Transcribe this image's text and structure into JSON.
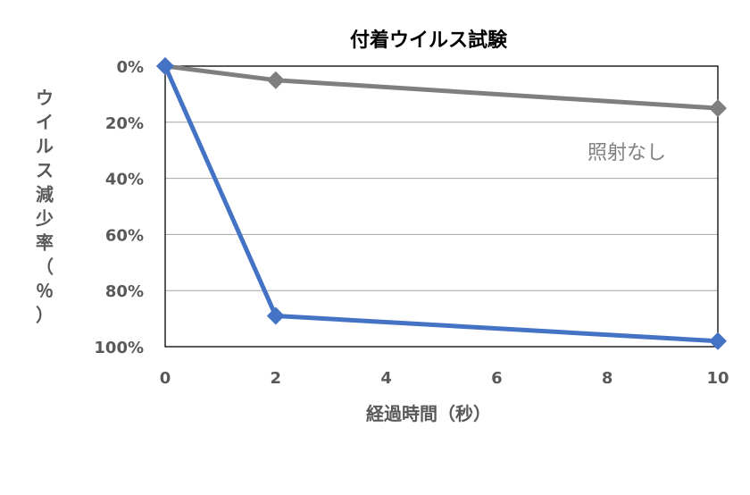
{
  "chart_data": {
    "type": "line",
    "title": "付着ウイルス試験",
    "xlabel": "経過時間（秒）",
    "ylabel": "ウイルス減少率（％）",
    "x_ticks": [
      "0",
      "2",
      "4",
      "6",
      "8",
      "10"
    ],
    "y_ticks": [
      "0%",
      "20%",
      "40%",
      "60%",
      "80%",
      "100%"
    ],
    "xlim": [
      0,
      10
    ],
    "ylim": [
      0,
      100
    ],
    "y_inverted": true,
    "grid": "horizontal",
    "series": [
      {
        "name": "照射なし",
        "color": "#7f7f7f",
        "marker": "diamond",
        "x": [
          0,
          2,
          10
        ],
        "y": [
          0,
          5,
          15
        ]
      },
      {
        "name": "",
        "color": "#4472c4",
        "marker": "diamond",
        "x": [
          0,
          2,
          10
        ],
        "y": [
          0,
          89,
          98
        ]
      }
    ],
    "annotations": [
      {
        "text": "照射なし",
        "series": 0
      }
    ]
  }
}
